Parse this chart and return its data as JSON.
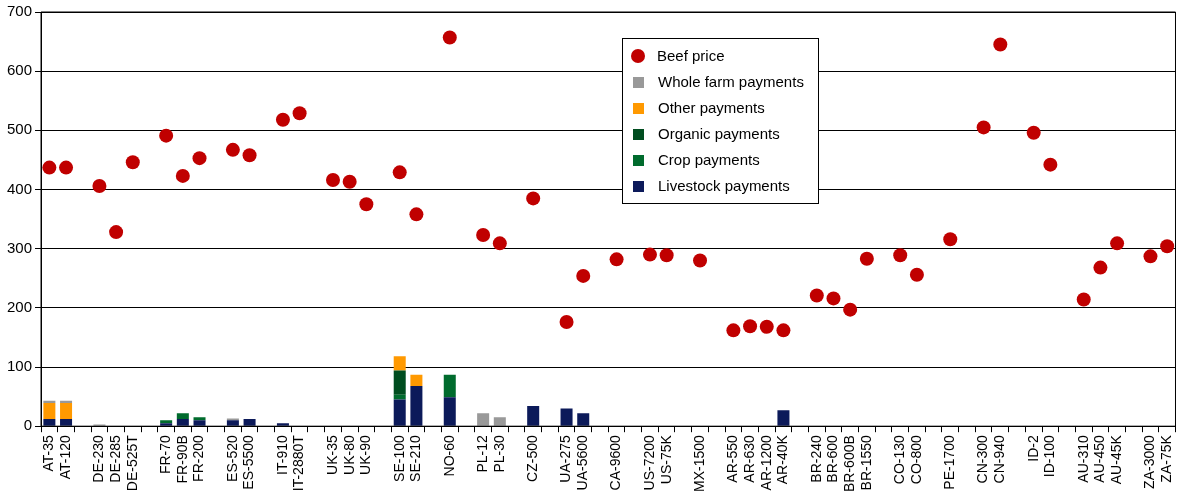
{
  "chart_data": {
    "type": "bar",
    "stacked": true,
    "categories": [
      "AT-35",
      "AT-120",
      null,
      "DE-230",
      "DE-285",
      "DE-525T",
      null,
      "FR-70",
      "FR-90B",
      "FR-200",
      null,
      "ES-520",
      "ES-5500",
      null,
      "IT-910",
      "IT-2880T",
      null,
      "UK-35",
      "UK-80",
      "UK-90",
      null,
      "SE-100",
      "SE-210",
      null,
      "NO-60",
      null,
      "PL-12",
      "PL-30",
      null,
      "CZ-500",
      null,
      "UA-275",
      "UA-5600",
      null,
      "CA-9600",
      null,
      "US-7200",
      "US-75K",
      null,
      "MX-1500",
      null,
      "AR-550",
      "AR-630",
      "AR-1200",
      "AR-40K",
      null,
      "BR-240",
      "BR-600",
      "BR-600B",
      "BR-1550",
      null,
      "CO-130",
      "CO-800",
      null,
      "PE-1700",
      null,
      "CN-300",
      "CN-940",
      null,
      "ID-2",
      "ID-100",
      null,
      "AU-310",
      "AU-450",
      "AU-45K",
      null,
      "ZA-3000",
      "ZA-75K"
    ],
    "series": [
      {
        "name": "Livestock payments",
        "color": "#0c1a5a",
        "values": [
          12,
          12,
          null,
          null,
          null,
          null,
          null,
          5,
          12,
          10,
          null,
          10,
          12,
          null,
          5,
          null,
          null,
          null,
          null,
          null,
          null,
          45,
          68,
          null,
          49,
          null,
          null,
          null,
          null,
          34,
          null,
          30,
          22,
          null,
          null,
          null,
          null,
          null,
          null,
          null,
          null,
          null,
          null,
          null,
          27,
          null,
          null,
          null,
          null,
          null,
          null,
          null,
          null,
          null,
          null,
          null,
          null,
          null,
          null,
          null,
          null,
          null,
          null,
          null,
          null,
          null,
          null,
          null
        ]
      },
      {
        "name": "Crop payments",
        "color": "#006b2d",
        "values": [
          null,
          null,
          null,
          null,
          null,
          null,
          null,
          5,
          10,
          5,
          null,
          null,
          null,
          null,
          null,
          null,
          null,
          null,
          null,
          null,
          null,
          8,
          null,
          null,
          38,
          null,
          null,
          null,
          null,
          null,
          null,
          null,
          null,
          null,
          null,
          null,
          null,
          null,
          null,
          null,
          null,
          null,
          null,
          null,
          null,
          null,
          null,
          null,
          null,
          null,
          null,
          null,
          null,
          null,
          null,
          null,
          null,
          null,
          null,
          null,
          null,
          null,
          null,
          null,
          null,
          null,
          null,
          null
        ]
      },
      {
        "name": "Organic payments",
        "color": "#004d1f",
        "values": [
          null,
          null,
          null,
          null,
          null,
          null,
          null,
          null,
          null,
          null,
          null,
          null,
          null,
          null,
          null,
          null,
          null,
          null,
          null,
          null,
          null,
          41,
          null,
          null,
          null,
          null,
          null,
          null,
          null,
          null,
          null,
          null,
          null,
          null,
          null,
          null,
          null,
          null,
          null,
          null,
          null,
          null,
          null,
          null,
          null,
          null,
          null,
          null,
          null,
          null,
          null,
          null,
          null,
          null,
          null,
          null,
          null,
          null,
          null,
          null,
          null,
          null,
          null,
          null,
          null,
          null,
          null,
          null
        ]
      },
      {
        "name": "Other payments",
        "color": "#ff9900",
        "values": [
          27,
          27,
          null,
          null,
          null,
          null,
          null,
          null,
          null,
          null,
          null,
          null,
          null,
          null,
          null,
          null,
          null,
          null,
          null,
          null,
          null,
          24,
          19,
          null,
          null,
          null,
          null,
          null,
          null,
          null,
          null,
          null,
          null,
          null,
          null,
          null,
          null,
          null,
          null,
          null,
          null,
          null,
          null,
          null,
          null,
          null,
          null,
          null,
          null,
          null,
          null,
          null,
          null,
          null,
          null,
          null,
          null,
          null,
          null,
          null,
          null,
          null,
          null,
          null,
          null,
          null,
          null,
          null
        ]
      },
      {
        "name": "Whole farm payments",
        "color": "#999999",
        "values": [
          4,
          4,
          null,
          3,
          null,
          null,
          null,
          null,
          null,
          null,
          null,
          3,
          null,
          null,
          null,
          null,
          null,
          null,
          null,
          null,
          null,
          null,
          null,
          null,
          null,
          null,
          22,
          15,
          null,
          null,
          null,
          null,
          null,
          null,
          null,
          null,
          null,
          null,
          null,
          null,
          null,
          null,
          null,
          null,
          null,
          null,
          null,
          null,
          null,
          null,
          null,
          null,
          null,
          null,
          null,
          null,
          null,
          null,
          null,
          null,
          null,
          null,
          null,
          null,
          null,
          null,
          null,
          null
        ]
      },
      {
        "name": "Beef price",
        "type": "scatter",
        "marker": "circle",
        "color": "#c00000",
        "values": [
          437,
          437,
          null,
          406,
          328,
          446,
          null,
          491,
          423,
          453,
          null,
          467,
          458,
          null,
          518,
          529,
          null,
          416,
          413,
          375,
          null,
          429,
          358,
          null,
          657,
          null,
          323,
          309,
          null,
          385,
          null,
          176,
          254,
          null,
          282,
          null,
          290,
          289,
          null,
          280,
          null,
          162,
          169,
          168,
          162,
          null,
          221,
          216,
          197,
          283,
          null,
          289,
          256,
          null,
          316,
          null,
          505,
          645,
          null,
          496,
          442,
          null,
          214,
          268,
          309,
          null,
          287,
          304
        ]
      }
    ],
    "ylim": [
      0,
      700
    ],
    "yticks": [
      0,
      100,
      200,
      300,
      400,
      500,
      600,
      700
    ],
    "grid": "y",
    "legend": "top"
  }
}
